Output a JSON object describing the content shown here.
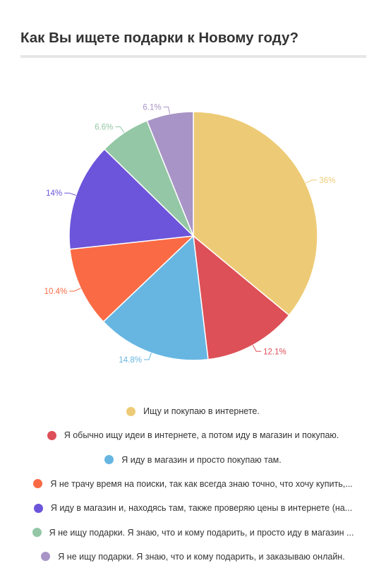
{
  "title": "Как Вы ищете подарки к Новому году?",
  "chart_data": {
    "type": "pie",
    "title": "Как Вы ищете подарки к Новому году?",
    "start_angle_deg": 0,
    "direction": "clockwise",
    "legend_position": "bottom",
    "slices": [
      {
        "label": "Ищу и покупаю в интернете.",
        "value": 36,
        "value_label": "36%",
        "color": "#EDCB76"
      },
      {
        "label": "Я обычно ищу идеи в интернете, а потом иду в магазин и покупаю.",
        "value": 12.1,
        "value_label": "12.1%",
        "color": "#DD5057"
      },
      {
        "label": "Я иду в магазин и просто покупаю там.",
        "value": 14.8,
        "value_label": "14.8%",
        "color": "#67B6E2"
      },
      {
        "label": "Я не трачу время на поиски, так как всегда знаю точно, что хочу купить,...",
        "value": 10.4,
        "value_label": "10.4%",
        "color": "#FA6A45"
      },
      {
        "label": "Я иду в магазин и, находясь там, также проверяю цены в интернете (на...",
        "value": 14,
        "value_label": "14%",
        "color": "#6C55DA"
      },
      {
        "label": "Я не ищу подарки. Я знаю, что и кому подарить, и просто иду в магазин ...",
        "value": 6.6,
        "value_label": "6.6%",
        "color": "#93C7A5"
      },
      {
        "label": "Я не ищу подарки. Я знаю, что и кому подарить, и заказываю онлайн.",
        "value": 6.1,
        "value_label": "6.1%",
        "color": "#A894C6"
      }
    ]
  }
}
